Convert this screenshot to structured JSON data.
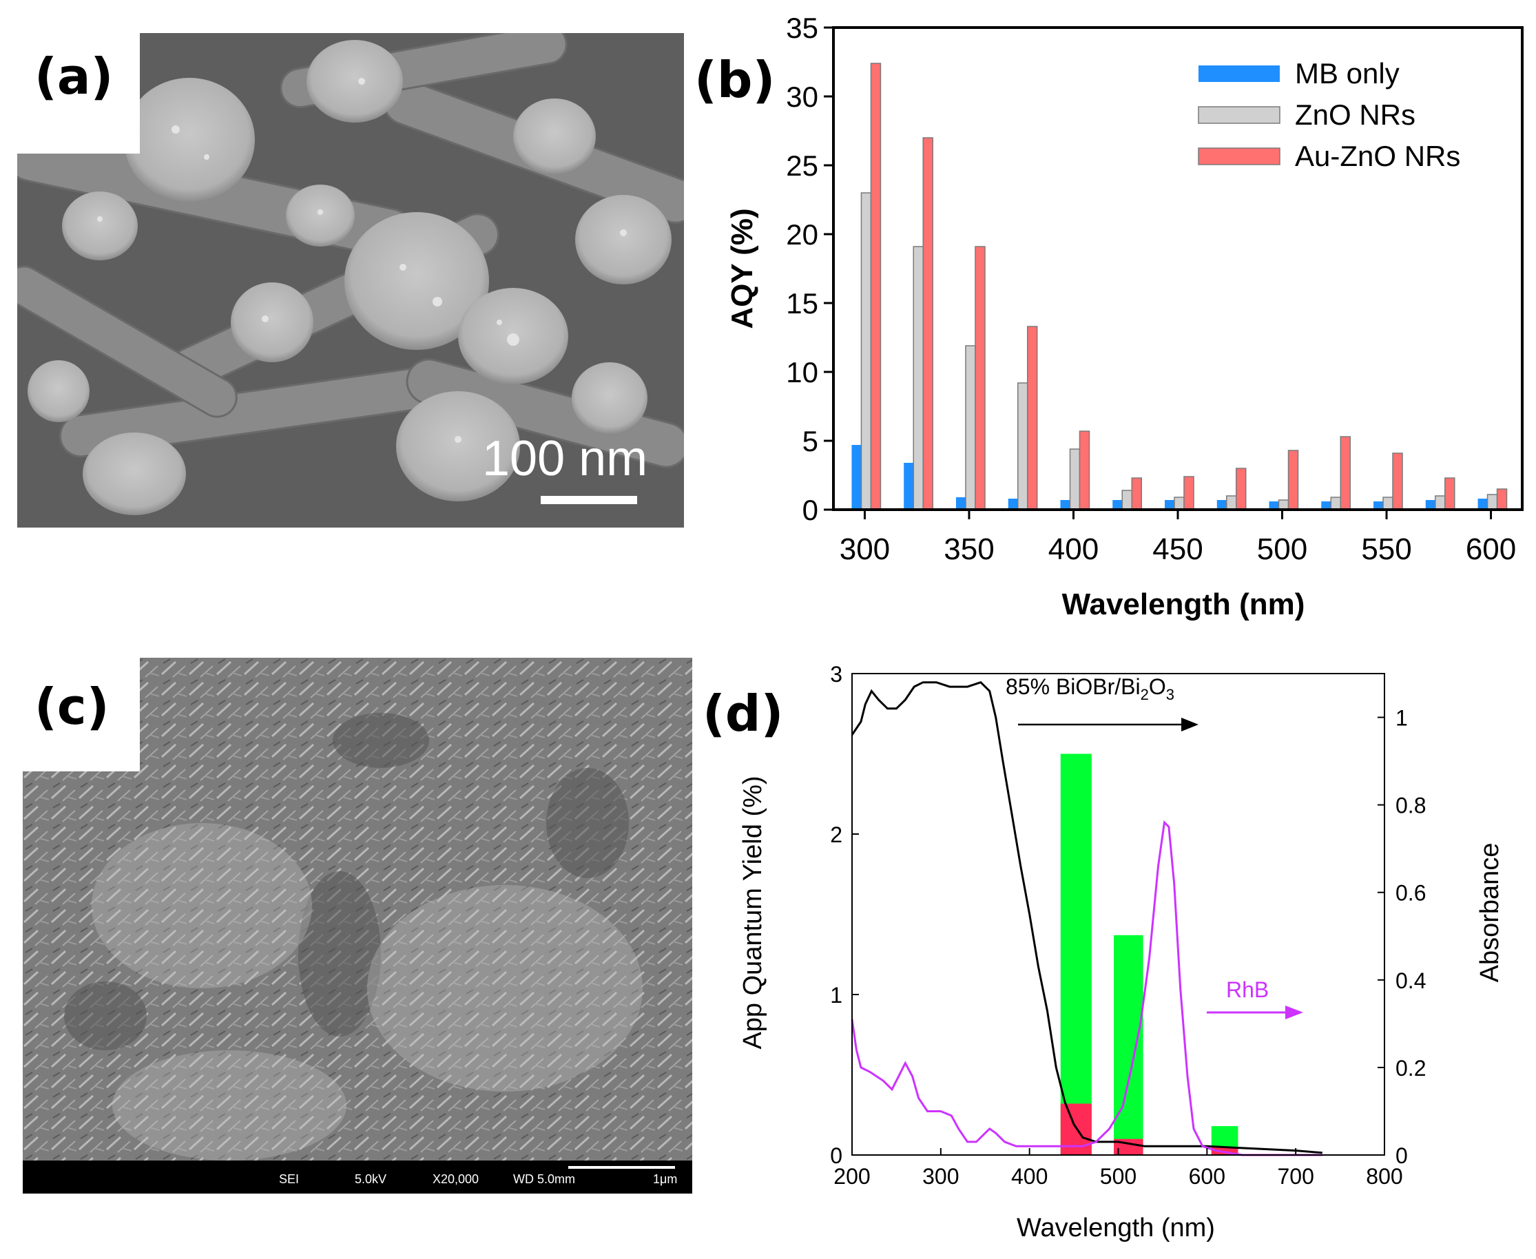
{
  "panels": {
    "a": {
      "label": "(a)",
      "scale_bar": "100 nm"
    },
    "b": {
      "label": "(b)"
    },
    "c": {
      "label": "(c)",
      "info_bar": [
        "SEI",
        "5.0kV",
        "X20,000",
        "WD 5.0mm",
        "1μm"
      ]
    },
    "d": {
      "label": "(d)"
    }
  },
  "chart_data": [
    {
      "type": "bar",
      "title": "",
      "xlabel": "Wavelength (nm)",
      "ylabel": "AQY (%)",
      "ylim": [
        0,
        35
      ],
      "yticks": [
        0,
        5,
        10,
        15,
        20,
        25,
        30,
        35
      ],
      "xticks": [
        300,
        350,
        400,
        450,
        500,
        550,
        600
      ],
      "xlim": [
        285,
        615
      ],
      "legend_position": "top-right",
      "categories": [
        300,
        325,
        350,
        375,
        400,
        425,
        450,
        475,
        500,
        525,
        550,
        575,
        600
      ],
      "series": [
        {
          "name": "MB only",
          "color": "#1f8fff",
          "values": [
            4.7,
            3.4,
            0.9,
            0.8,
            0.7,
            0.7,
            0.7,
            0.7,
            0.6,
            0.6,
            0.6,
            0.7,
            0.8
          ]
        },
        {
          "name": "ZnO NRs",
          "color": "#d0d0d0",
          "values": [
            23.0,
            19.1,
            11.9,
            9.2,
            4.4,
            1.4,
            0.9,
            1.0,
            0.7,
            0.9,
            0.9,
            1.0,
            1.1
          ]
        },
        {
          "name": "Au-ZnO NRs",
          "color": "#ff7070",
          "values": [
            32.4,
            27.0,
            19.1,
            13.3,
            5.7,
            2.3,
            2.4,
            3.0,
            4.3,
            5.3,
            4.1,
            2.3,
            1.5
          ]
        }
      ]
    },
    {
      "type": "bar",
      "title": "",
      "xlabel": "Wavelength  (nm)",
      "ylabel": "App Quantum  Yield (%)",
      "y2label": "Absorbance",
      "xlim": [
        200,
        800
      ],
      "ylim": [
        0,
        3
      ],
      "y2lim": [
        0,
        1.1
      ],
      "xticks": [
        200,
        300,
        400,
        500,
        600,
        700,
        800
      ],
      "yticks": [
        0,
        1,
        2,
        3
      ],
      "y2ticks": [
        0,
        0.2,
        0.4,
        0.6,
        0.8,
        1
      ],
      "bars": [
        {
          "x_range": [
            435,
            470
          ],
          "green": 2.5,
          "red": 0.32
        },
        {
          "x_range": [
            495,
            528
          ],
          "green": 1.37,
          "red": 0.1
        },
        {
          "x_range": [
            605,
            635
          ],
          "green": 0.18,
          "red": 0.05
        }
      ],
      "bar_colors": {
        "green": "#00ff33",
        "red": "#ff2a55"
      },
      "annotations": [
        {
          "text": "85% BiOBr/Bi",
          "subscript": "2",
          "text2": "O",
          "subscript2": "3",
          "arrow": "right",
          "color": "#000000"
        },
        {
          "text": "RhB",
          "arrow": "right",
          "color": "#cc33ff"
        }
      ],
      "lines": [
        {
          "name": "85% BiOBr/Bi2O3",
          "axis": "y2",
          "color": "#000000",
          "points": [
            [
              200,
              0.96
            ],
            [
              210,
              0.99
            ],
            [
              215,
              1.03
            ],
            [
              222,
              1.06
            ],
            [
              230,
              1.04
            ],
            [
              240,
              1.02
            ],
            [
              250,
              1.02
            ],
            [
              260,
              1.04
            ],
            [
              270,
              1.07
            ],
            [
              280,
              1.08
            ],
            [
              295,
              1.08
            ],
            [
              310,
              1.07
            ],
            [
              330,
              1.07
            ],
            [
              345,
              1.08
            ],
            [
              355,
              1.06
            ],
            [
              362,
              1.0
            ],
            [
              370,
              0.9
            ],
            [
              380,
              0.78
            ],
            [
              390,
              0.66
            ],
            [
              400,
              0.55
            ],
            [
              410,
              0.43
            ],
            [
              420,
              0.33
            ],
            [
              430,
              0.2
            ],
            [
              440,
              0.12
            ],
            [
              450,
              0.07
            ],
            [
              460,
              0.04
            ],
            [
              475,
              0.03
            ],
            [
              500,
              0.03
            ],
            [
              530,
              0.02
            ],
            [
              560,
              0.02
            ],
            [
              600,
              0.02
            ],
            [
              650,
              0.015
            ],
            [
              700,
              0.01
            ],
            [
              730,
              0.005
            ]
          ]
        },
        {
          "name": "RhB",
          "axis": "y2",
          "color": "#cc33ff",
          "points": [
            [
              200,
              0.31
            ],
            [
              205,
              0.24
            ],
            [
              210,
              0.2
            ],
            [
              220,
              0.19
            ],
            [
              235,
              0.17
            ],
            [
              245,
              0.15
            ],
            [
              255,
              0.19
            ],
            [
              260,
              0.21
            ],
            [
              268,
              0.18
            ],
            [
              275,
              0.13
            ],
            [
              285,
              0.1
            ],
            [
              300,
              0.1
            ],
            [
              312,
              0.09
            ],
            [
              320,
              0.06
            ],
            [
              330,
              0.03
            ],
            [
              340,
              0.03
            ],
            [
              350,
              0.05
            ],
            [
              355,
              0.06
            ],
            [
              362,
              0.05
            ],
            [
              372,
              0.03
            ],
            [
              385,
              0.02
            ],
            [
              400,
              0.02
            ],
            [
              420,
              0.02
            ],
            [
              440,
              0.02
            ],
            [
              460,
              0.02
            ],
            [
              475,
              0.03
            ],
            [
              490,
              0.06
            ],
            [
              505,
              0.11
            ],
            [
              515,
              0.2
            ],
            [
              525,
              0.3
            ],
            [
              535,
              0.45
            ],
            [
              545,
              0.66
            ],
            [
              552,
              0.76
            ],
            [
              557,
              0.75
            ],
            [
              563,
              0.62
            ],
            [
              570,
              0.38
            ],
            [
              578,
              0.18
            ],
            [
              585,
              0.06
            ],
            [
              595,
              0.02
            ],
            [
              610,
              0.01
            ],
            [
              640,
              0.0
            ],
            [
              700,
              0.0
            ],
            [
              730,
              0.0
            ]
          ]
        }
      ]
    }
  ]
}
